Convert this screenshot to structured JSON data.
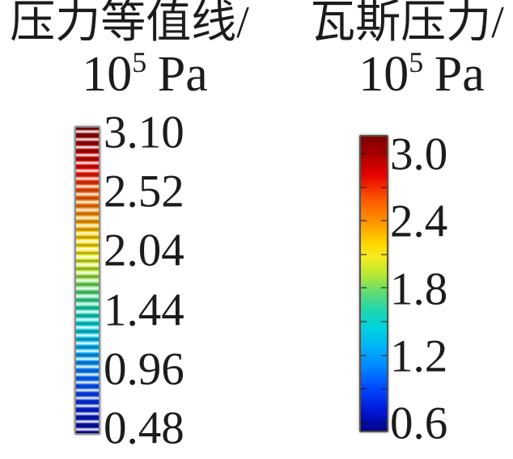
{
  "figure": {
    "background": "#ffffff",
    "text_color": "#1c1c1c"
  },
  "colormap": {
    "name": "jet",
    "stops": [
      [
        "0%",
        "#7E0000"
      ],
      [
        "6%",
        "#A80000"
      ],
      [
        "13%",
        "#E80000"
      ],
      [
        "21%",
        "#FB5500"
      ],
      [
        "29%",
        "#FD9400"
      ],
      [
        "36%",
        "#FFD400"
      ],
      [
        "41%",
        "#F6EC1E"
      ],
      [
        "47%",
        "#B5E835"
      ],
      [
        "53%",
        "#62DB74"
      ],
      [
        "59%",
        "#1FD6AC"
      ],
      [
        "65%",
        "#00D2DE"
      ],
      [
        "71%",
        "#00B5F5"
      ],
      [
        "78%",
        "#0089FF"
      ],
      [
        "85%",
        "#004CFF"
      ],
      [
        "93%",
        "#0018D8"
      ],
      [
        "100%",
        "#000489"
      ]
    ]
  },
  "legends": [
    {
      "title": "压力等值线/",
      "unit": {
        "base": "10",
        "exp": "5",
        "suffix": "Pa"
      },
      "bar_style": "striped",
      "ticks": [
        "3.10",
        "2.52",
        "2.04",
        "1.44",
        "0.96",
        "0.48"
      ]
    },
    {
      "title": "瓦斯压力/",
      "unit": {
        "base": "10",
        "exp": "5",
        "suffix": "Pa"
      },
      "bar_style": "smooth",
      "ticks": [
        "3.0",
        "2.4",
        "1.8",
        "1.2",
        "0.6"
      ]
    }
  ],
  "chart_data": [
    {
      "type": "heatmap",
      "subtype": "colorbar-legend",
      "title": "压力等值线/10^5 Pa",
      "orientation": "vertical",
      "bar_style": "striped-discrete-bands",
      "colormap": "jet",
      "tick_values": [
        3.1,
        2.52,
        2.04,
        1.44,
        0.96,
        0.48
      ],
      "value_max_top": 3.1,
      "value_min_bottom": 0.48,
      "unit": "10^5 Pa"
    },
    {
      "type": "heatmap",
      "subtype": "colorbar-legend",
      "title": "瓦斯压力/10^5 Pa",
      "orientation": "vertical",
      "bar_style": "smooth-gradient",
      "colormap": "jet",
      "tick_values": [
        3.0,
        2.4,
        1.8,
        1.2,
        0.6
      ],
      "value_max_top": 3.0,
      "value_min_bottom": 0.6,
      "unit": "10^5 Pa"
    }
  ]
}
